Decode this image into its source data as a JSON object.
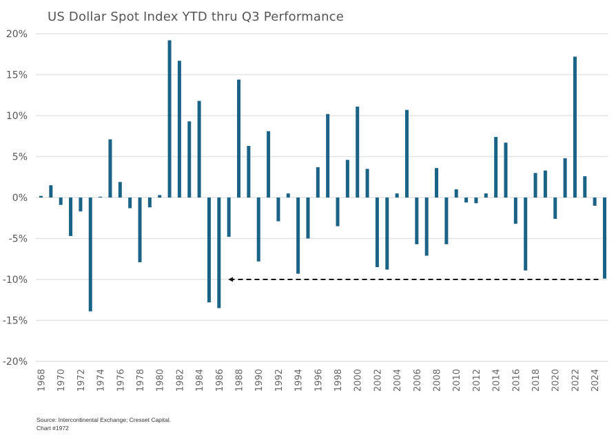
{
  "chart_data": {
    "type": "bar",
    "title": "US Dollar Spot Index YTD thru Q3 Performance",
    "xlabel": "",
    "ylabel": "",
    "ylim": [
      -20,
      20
    ],
    "yticks": [
      20,
      15,
      10,
      5,
      0,
      -5,
      -10,
      -15,
      -20
    ],
    "ytick_labels": [
      "20%",
      "15%",
      "10%",
      "5%",
      "0%",
      "-5%",
      "-10%",
      "-15%",
      "-20%"
    ],
    "grid": true,
    "bar_color": "#1b6386",
    "categories": [
      1968,
      1969,
      1970,
      1971,
      1972,
      1973,
      1974,
      1975,
      1976,
      1977,
      1978,
      1979,
      1980,
      1981,
      1982,
      1983,
      1984,
      1985,
      1986,
      1987,
      1988,
      1989,
      1990,
      1991,
      1992,
      1993,
      1994,
      1995,
      1996,
      1997,
      1998,
      1999,
      2000,
      2001,
      2002,
      2003,
      2004,
      2005,
      2006,
      2007,
      2008,
      2009,
      2010,
      2011,
      2012,
      2013,
      2014,
      2015,
      2016,
      2017,
      2018,
      2019,
      2020,
      2021,
      2022,
      2023,
      2024,
      2025
    ],
    "xtick_labels": [
      "1968",
      "1970",
      "1972",
      "1974",
      "1976",
      "1978",
      "1980",
      "1982",
      "1984",
      "1986",
      "1988",
      "1990",
      "1992",
      "1994",
      "1996",
      "1998",
      "2000",
      "2002",
      "2004",
      "2006",
      "2008",
      "2010",
      "2012",
      "2014",
      "2016",
      "2018",
      "2020",
      "2022",
      "2024"
    ],
    "values": [
      0.2,
      1.5,
      -0.9,
      -4.7,
      -1.7,
      -13.9,
      0.1,
      7.1,
      1.9,
      -1.3,
      -7.9,
      -1.2,
      0.3,
      19.2,
      16.7,
      9.3,
      11.8,
      -12.8,
      -13.5,
      -4.8,
      14.4,
      6.3,
      -7.8,
      8.1,
      -2.9,
      0.5,
      -9.3,
      -5.0,
      3.7,
      10.2,
      -3.5,
      4.6,
      11.1,
      3.5,
      -8.5,
      -8.8,
      0.5,
      10.7,
      -5.7,
      -7.1,
      3.6,
      -5.7,
      1.0,
      -0.6,
      -0.7,
      0.5,
      7.4,
      6.7,
      -3.2,
      -8.9,
      3.0,
      3.3,
      -2.6,
      4.8,
      17.2,
      2.6,
      -1.0,
      -9.9
    ],
    "annotation": {
      "type": "dashed-arrow",
      "from_year": 2025,
      "to_year": 1987,
      "level": -10
    },
    "arrow_color": "#111111"
  },
  "footer": {
    "source": "Source: Intercontinental Exchange; Cresset Capital.",
    "chart_id": "Chart #1972"
  }
}
